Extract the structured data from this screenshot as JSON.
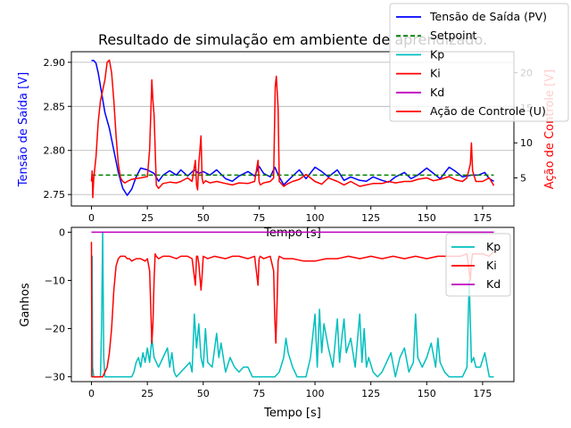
{
  "title": "Resultado de simulação em ambiente de aprendizado.",
  "colors": {
    "pv": "#0000ff",
    "setpoint": "#008000",
    "kp": "#00bfbf",
    "ki": "#ff0000",
    "kd": "#bf00bf",
    "u": "#ff0000",
    "grid": "#b0b0b0"
  },
  "chart_data": [
    {
      "type": "line",
      "title": "Resultado de simulação em ambiente de aprendizado.",
      "xlabel": "Tempo [s]",
      "ylabel": "Tensão de Saída [V]",
      "y2label": "Ação de Controle [V]",
      "xlim": [
        -9,
        189
      ],
      "ylim": [
        2.737,
        2.912
      ],
      "y2lim": [
        1,
        23
      ],
      "xticks": [
        "0",
        "25",
        "50",
        "75",
        "100",
        "125",
        "150",
        "175"
      ],
      "yticks": [
        "2.75",
        "2.80",
        "2.85",
        "2.90"
      ],
      "y2ticks": [
        "5",
        "10",
        "15",
        "20"
      ],
      "grid": "horizontal",
      "legend": "top-right",
      "legend_entries": [
        "Tensão de Saída (PV)",
        "Setpoint",
        "Kp",
        "Ki",
        "Kd",
        "Ação de Controle (U)"
      ],
      "series": [
        {
          "name": "Tensão de Saída (PV)",
          "axis": "left",
          "x": [
            0,
            1,
            2,
            3,
            4,
            5,
            6,
            8,
            10,
            12,
            14,
            16,
            18,
            20,
            22,
            25,
            28,
            30,
            32,
            35,
            38,
            40,
            43,
            46,
            48,
            50,
            53,
            56,
            60,
            63,
            66,
            70,
            73,
            75,
            77,
            80,
            82,
            84,
            86,
            88,
            90,
            93,
            96,
            100,
            103,
            106,
            110,
            113,
            116,
            120,
            123,
            126,
            130,
            133,
            136,
            140,
            143,
            146,
            150,
            153,
            156,
            160,
            163,
            166,
            170,
            173,
            176,
            178,
            180
          ],
          "y": [
            2.902,
            2.902,
            2.899,
            2.888,
            2.873,
            2.858,
            2.843,
            2.825,
            2.8,
            2.775,
            2.757,
            2.749,
            2.756,
            2.77,
            2.78,
            2.778,
            2.774,
            2.765,
            2.772,
            2.777,
            2.772,
            2.778,
            2.771,
            2.778,
            2.774,
            2.776,
            2.772,
            2.778,
            2.768,
            2.765,
            2.771,
            2.776,
            2.771,
            2.782,
            2.774,
            2.77,
            2.781,
            2.77,
            2.761,
            2.766,
            2.771,
            2.778,
            2.768,
            2.781,
            2.776,
            2.77,
            2.778,
            2.766,
            2.77,
            2.766,
            2.765,
            2.77,
            2.766,
            2.764,
            2.77,
            2.775,
            2.768,
            2.772,
            2.78,
            2.774,
            2.768,
            2.781,
            2.776,
            2.77,
            2.772,
            2.772,
            2.775,
            2.768,
            2.765
          ]
        },
        {
          "name": "Setpoint",
          "axis": "left",
          "x": [
            0,
            180
          ],
          "y": [
            2.772,
            2.772
          ]
        },
        {
          "name": "Ação de Controle (U)",
          "axis": "right",
          "x": [
            0,
            0.3,
            0.6,
            1,
            2,
            3,
            4,
            5,
            6,
            7,
            8,
            9,
            10,
            11,
            12,
            13,
            14,
            15,
            16,
            18,
            20,
            22,
            25,
            26,
            27,
            27.5,
            28,
            29,
            30,
            32,
            35,
            38,
            40,
            43,
            45,
            46.5,
            47,
            47.5,
            48,
            49,
            49.5,
            50,
            51,
            53,
            56,
            60,
            63,
            66,
            70,
            73,
            74.5,
            75,
            75.5,
            77,
            80,
            81.5,
            82.2,
            82.7,
            83.5,
            84,
            86,
            88,
            90,
            93,
            96,
            100,
            103,
            106,
            110,
            113,
            116,
            120,
            123,
            126,
            130,
            133,
            136,
            140,
            143,
            146,
            150,
            153,
            156,
            160,
            163,
            166,
            168,
            169.5,
            170,
            170.5,
            172,
            175,
            178,
            180
          ],
          "y": [
            4.5,
            6,
            2.2,
            5,
            8,
            13,
            16,
            17.5,
            19,
            21.5,
            21.8,
            20,
            16,
            11,
            7,
            5,
            4.5,
            4.3,
            4.5,
            4.8,
            4.9,
            5,
            5.2,
            9,
            19,
            16,
            14,
            4,
            3.5,
            4.2,
            4.4,
            4.3,
            4.5,
            5,
            4.5,
            7.5,
            4,
            3.3,
            7,
            11,
            5,
            4.2,
            4.6,
            4.3,
            4.5,
            4.2,
            4,
            4.3,
            4.2,
            4.5,
            7.5,
            4.5,
            4,
            4.3,
            4.5,
            5,
            18,
            19.5,
            15,
            4.5,
            3.8,
            4.2,
            4.5,
            4.8,
            5.5,
            4.5,
            4.1,
            5,
            4.5,
            4,
            4.5,
            3.8,
            4,
            4.2,
            4.2,
            4.5,
            4.3,
            4.5,
            4.5,
            4.8,
            5,
            4.6,
            4.8,
            5.2,
            4.7,
            4.5,
            5,
            7,
            10,
            6,
            4.5,
            4.5,
            5,
            3.9
          ]
        }
      ]
    },
    {
      "type": "line",
      "xlabel": "Tempo [s]",
      "ylabel": "Ganhos",
      "xlim": [
        -9,
        189
      ],
      "ylim": [
        -31,
        1
      ],
      "xticks": [
        "0",
        "25",
        "50",
        "75",
        "100",
        "125",
        "150",
        "175"
      ],
      "yticks": [
        "0",
        "−10",
        "−20",
        "−30"
      ],
      "grid": "none",
      "legend": "top-right",
      "legend_entries": [
        "Kp",
        "Ki",
        "Kd"
      ],
      "series": [
        {
          "name": "Kp",
          "x": [
            0,
            0.3,
            0.5,
            1,
            2,
            3,
            4,
            4.5,
            5,
            5.5,
            6,
            8,
            10,
            12,
            14,
            16,
            18,
            19,
            20,
            21,
            22,
            23,
            24,
            25,
            26,
            27,
            28,
            30,
            32,
            34,
            35,
            36,
            37,
            38,
            40,
            42,
            44,
            45,
            46,
            47,
            48,
            49,
            50,
            51,
            52,
            54,
            56,
            57,
            58,
            60,
            62,
            64,
            66,
            68,
            70,
            72,
            74,
            75,
            76,
            77,
            78,
            80,
            82,
            84,
            86,
            87,
            88,
            90,
            92,
            94,
            96,
            98,
            100,
            101,
            102,
            103,
            104,
            106,
            108,
            110,
            111,
            112,
            113,
            114,
            116,
            118,
            120,
            121,
            122,
            123,
            124,
            126,
            128,
            130,
            132,
            134,
            136,
            138,
            140,
            142,
            144,
            145,
            146,
            148,
            150,
            152,
            154,
            155,
            156,
            158,
            160,
            162,
            164,
            166,
            168,
            169,
            170,
            171,
            172,
            174,
            176,
            178,
            180
          ],
          "y": [
            -30,
            -5,
            -28,
            -30,
            -30,
            -30,
            -30,
            -20,
            0,
            -26,
            -30,
            -30,
            -30,
            -30,
            -30,
            -30,
            -30,
            -29,
            -27,
            -26,
            -28,
            -25,
            -27,
            -24,
            -27,
            -22,
            -26,
            -28,
            -26,
            -24,
            -28,
            -25,
            -29,
            -30,
            -29,
            -28,
            -27,
            -29,
            -17,
            -24,
            -19,
            -26,
            -28,
            -20,
            -27,
            -28,
            -21,
            -26,
            -23,
            -29,
            -26,
            -28,
            -29,
            -28,
            -28,
            -30,
            -30,
            -30,
            -30,
            -30,
            -30,
            -30,
            -30,
            -29,
            -26,
            -22,
            -25,
            -28,
            -30,
            -30,
            -30,
            -26,
            -17,
            -28,
            -16,
            -25,
            -19,
            -24,
            -28,
            -18,
            -27,
            -22,
            -18,
            -25,
            -22,
            -28,
            -17,
            -27,
            -20,
            -28,
            -26,
            -29,
            -30,
            -29,
            -27,
            -25,
            -30,
            -26,
            -24,
            -29,
            -27,
            -17,
            -26,
            -28,
            -26,
            -23,
            -28,
            -22,
            -27,
            -29,
            -30,
            -30,
            -30,
            -30,
            -28,
            -10,
            -27,
            -26,
            -28,
            -28,
            -25,
            -30,
            -30
          ]
        },
        {
          "name": "Ki",
          "x": [
            0,
            0.2,
            0.5,
            1,
            2,
            3,
            4,
            5,
            6,
            7,
            8,
            9,
            10,
            11,
            12,
            13,
            14,
            15,
            16,
            17,
            18,
            20,
            22,
            24,
            25,
            26,
            26.5,
            27,
            27.5,
            28,
            28.5,
            29,
            30,
            32,
            35,
            38,
            40,
            43,
            45,
            46.5,
            47,
            47.5,
            48,
            49,
            49.5,
            50,
            52,
            55,
            60,
            63,
            66,
            70,
            73,
            74.5,
            75,
            75.5,
            77,
            80,
            81.5,
            82,
            82.5,
            83,
            83.5,
            84,
            86,
            90,
            95,
            100,
            105,
            110,
            115,
            120,
            125,
            130,
            135,
            140,
            145,
            150,
            155,
            160,
            165,
            168,
            169.5,
            170,
            170.5,
            172,
            175,
            178,
            180
          ],
          "y": [
            -2,
            -30,
            -30,
            -30,
            -30,
            -30,
            -30,
            -30,
            -29,
            -28,
            -25,
            -20,
            -12,
            -7,
            -5.5,
            -5,
            -5,
            -5,
            -5.5,
            -5.5,
            -6,
            -5.5,
            -5.5,
            -6,
            -5.5,
            -8,
            -15,
            -23,
            -19,
            -10,
            -4.5,
            -5,
            -5.5,
            -5,
            -5,
            -5.5,
            -5,
            -5,
            -5.5,
            -11,
            -5,
            -5,
            -6.5,
            -12,
            -9,
            -5,
            -5.5,
            -5,
            -5.5,
            -5,
            -5,
            -5.5,
            -5,
            -11,
            -5.5,
            -5,
            -5.5,
            -5,
            -8,
            -18,
            -23,
            -15,
            -6,
            -5,
            -5.5,
            -5.5,
            -6,
            -6,
            -5.5,
            -5.5,
            -5,
            -5.5,
            -5,
            -5.5,
            -5,
            -5.5,
            -5,
            -5.5,
            -5,
            -5,
            -5,
            -4.5,
            -10,
            -6,
            -4.5,
            -4.5,
            -4.5,
            -5,
            -4
          ]
        },
        {
          "name": "Kd",
          "x": [
            0,
            180
          ],
          "y": [
            0,
            0
          ]
        }
      ]
    }
  ]
}
